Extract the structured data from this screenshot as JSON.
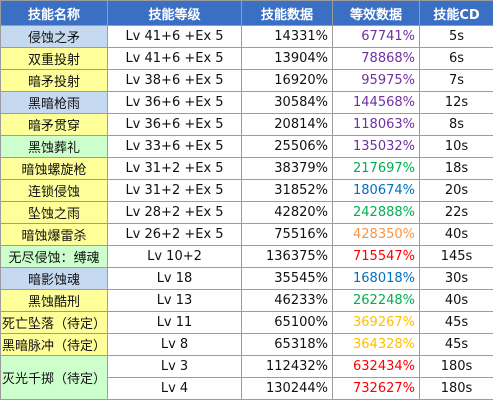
{
  "headers": [
    "技能名称",
    "技能等级",
    "技能数据",
    "等效数据",
    "技能CD"
  ],
  "colors": {
    "header_bg": "#3a6fc4",
    "name_blue": "#c5d9f1",
    "name_yellow": "#ffff99",
    "name_green": "#ccffcc",
    "purple": "#7030a0",
    "green": "#00b050",
    "blue": "#0070c0",
    "orange": "#f79646",
    "red": "#ff0000",
    "gold": "#ffc000"
  },
  "rows": [
    {
      "name": "侵蚀之矛",
      "name_bg": "#c5d9f1",
      "level": "Lv 41+6 +Ex 5",
      "data": "14331%",
      "eq": "67741%",
      "eq_color": "#7030a0",
      "cd": "5s"
    },
    {
      "name": "双重投射",
      "name_bg": "#ffff99",
      "level": "Lv 41+6 +Ex 5",
      "data": "13904%",
      "eq": "78868%",
      "eq_color": "#7030a0",
      "cd": "6s"
    },
    {
      "name": "暗矛投射",
      "name_bg": "#ffff99",
      "level": "Lv 38+6 +Ex 5",
      "data": "16920%",
      "eq": "95975%",
      "eq_color": "#7030a0",
      "cd": "7s"
    },
    {
      "name": "黑暗枪雨",
      "name_bg": "#c5d9f1",
      "level": "Lv 36+6 +Ex 5",
      "data": "30584%",
      "eq": "144568%",
      "eq_color": "#7030a0",
      "cd": "12s"
    },
    {
      "name": "暗矛贯穿",
      "name_bg": "#ffff99",
      "level": "Lv 36+6 +Ex 5",
      "data": "20814%",
      "eq": "118063%",
      "eq_color": "#7030a0",
      "cd": "8s"
    },
    {
      "name": "黑蚀葬礼",
      "name_bg": "#ccffcc",
      "level": "Lv 33+6 +Ex 5",
      "data": "25506%",
      "eq": "135032%",
      "eq_color": "#7030a0",
      "cd": "10s"
    },
    {
      "name": "暗蚀螺旋枪",
      "name_bg": "#ffff99",
      "level": "Lv 31+2 +Ex 5",
      "data": "38379%",
      "eq": "217697%",
      "eq_color": "#00b050",
      "cd": "18s"
    },
    {
      "name": "连锁侵蚀",
      "name_bg": "#ffff99",
      "level": "Lv 31+2 +Ex 5",
      "data": "31852%",
      "eq": "180674%",
      "eq_color": "#0070c0",
      "cd": "20s"
    },
    {
      "name": "坠蚀之雨",
      "name_bg": "#ffff99",
      "level": "Lv 28+2 +Ex 5",
      "data": "42820%",
      "eq": "242888%",
      "eq_color": "#00b050",
      "cd": "22s"
    },
    {
      "name": "暗蚀爆雷杀",
      "name_bg": "#ffff99",
      "level": "Lv 26+2 +Ex 5",
      "data": "75516%",
      "eq": "428350%",
      "eq_color": "#f79646",
      "cd": "40s"
    },
    {
      "name": "无尽侵蚀：缚魂",
      "name_bg": "#ccffcc",
      "level": "Lv 10+2",
      "data": "136375%",
      "eq": "715547%",
      "eq_color": "#ff0000",
      "cd": "145s"
    },
    {
      "name": "暗影蚀魂",
      "name_bg": "#c5d9f1",
      "level": "Lv 18",
      "data": "35545%",
      "eq": "168018%",
      "eq_color": "#0070c0",
      "cd": "30s"
    },
    {
      "name": "黑蚀酷刑",
      "name_bg": "#ffff99",
      "level": "Lv 13",
      "data": "46233%",
      "eq": "262248%",
      "eq_color": "#00b050",
      "cd": "40s"
    },
    {
      "name": "死亡坠落（待定）",
      "name_bg": "#ffff99",
      "level": "Lv 11",
      "data": "65100%",
      "eq": "369267%",
      "eq_color": "#ffc000",
      "cd": "45s"
    },
    {
      "name": "黑暗脉冲（待定）",
      "name_bg": "#ffff99",
      "level": "Lv 8",
      "data": "65318%",
      "eq": "364328%",
      "eq_color": "#ffc000",
      "cd": "45s"
    }
  ],
  "merged": {
    "name": "灭光千掷（待定）",
    "name_bg": "#ccffcc",
    "rows": [
      {
        "level": "Lv 3",
        "data": "112432%",
        "eq": "632434%",
        "eq_color": "#ff0000",
        "cd": "180s"
      },
      {
        "level": "Lv 4",
        "data": "130244%",
        "eq": "732627%",
        "eq_color": "#ff0000",
        "cd": "180s"
      }
    ]
  }
}
